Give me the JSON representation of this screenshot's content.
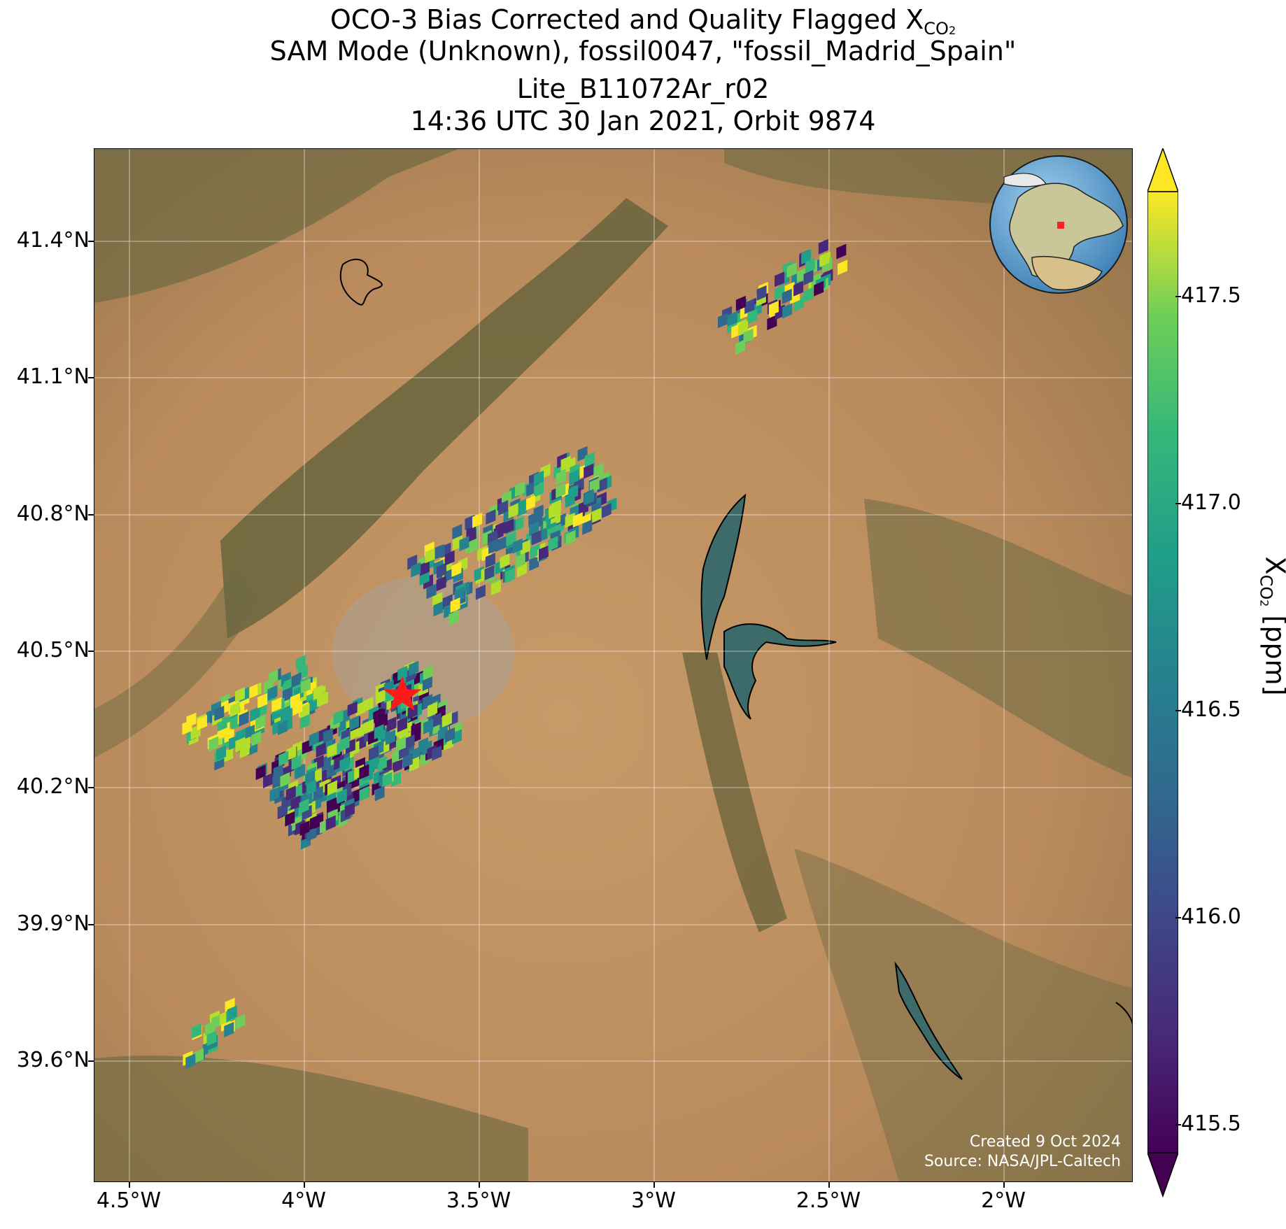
{
  "title": {
    "line1_prefix": "OCO-3 Bias Corrected and Quality Flagged X",
    "line1_sub": "CO",
    "line1_sub2": "2",
    "line2": "SAM Mode (Unknown), fossil0047, \"fossil_Madrid_Spain\"",
    "line3": "Lite_B11072Ar_r02",
    "line4": "14:36 UTC 30 Jan 2021, Orbit 9874"
  },
  "lat_ticks": [
    "41.4°N",
    "41.1°N",
    "40.8°N",
    "40.5°N",
    "40.2°N",
    "39.9°N",
    "39.6°N"
  ],
  "lon_ticks": [
    "4.5°W",
    "4°W",
    "3.5°W",
    "3°W",
    "2.5°W",
    "2°W"
  ],
  "colorbar": {
    "ticks": [
      "417.5",
      "417.0",
      "416.5",
      "416.0",
      "415.5"
    ],
    "label_prefix": "X",
    "label_sub": "CO",
    "label_sub2": "2",
    "label_suffix": " [ppm]",
    "colormap": "viridis",
    "range": [
      415.4,
      417.75
    ],
    "extend": "both"
  },
  "credit": {
    "line1": "Created 9 Oct 2024",
    "line2": "Source: NASA/JPL-Caltech"
  },
  "map": {
    "basemap": "satellite imagery",
    "gridlines": true,
    "extent": {
      "lon": [
        -4.6,
        -1.6
      ],
      "lat": [
        39.3,
        41.6
      ]
    },
    "target_marker": {
      "symbol": "red star",
      "lon": -3.7,
      "lat": 40.42
    },
    "inset_globe": "Europe/Africa globe with red location marker"
  }
}
